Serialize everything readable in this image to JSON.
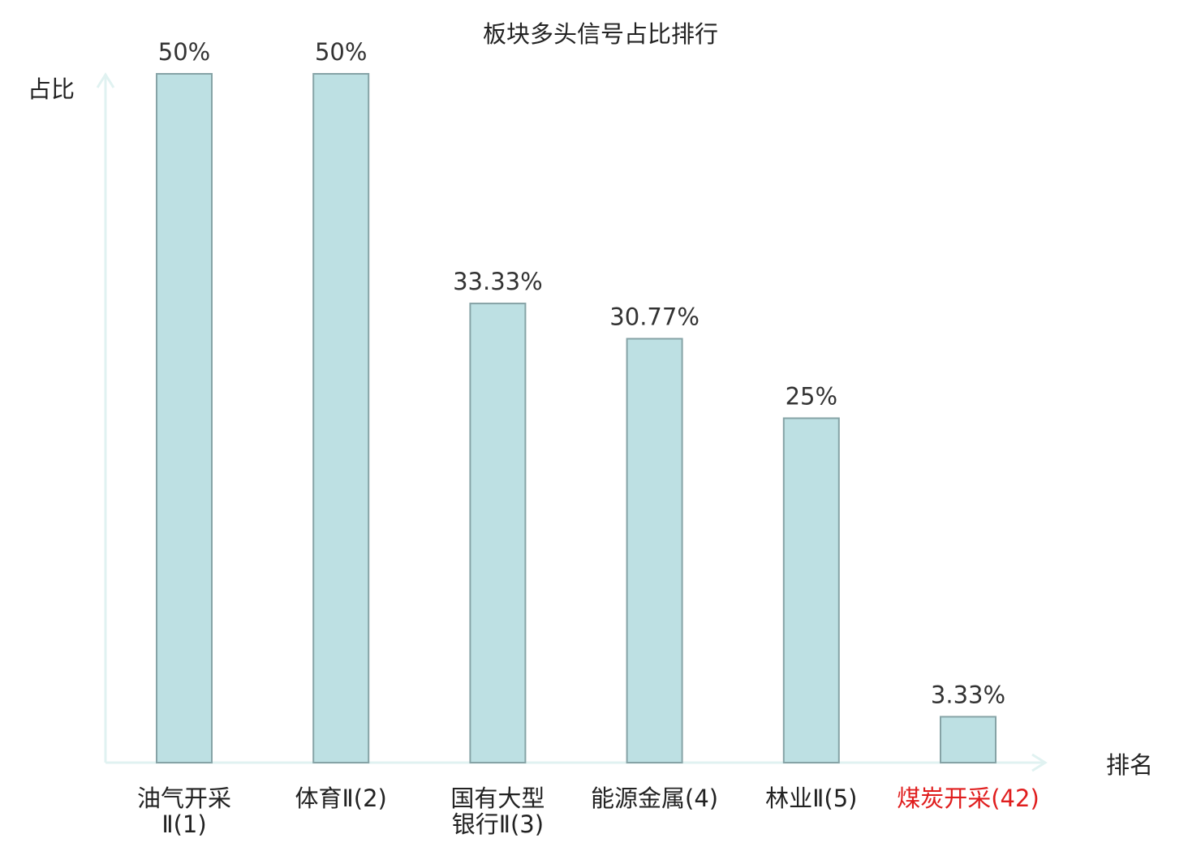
{
  "chart_data": {
    "type": "bar",
    "title": "板块多头信号占比排行",
    "ylabel": "占比",
    "xlabel": "排名",
    "categories": [
      [
        "油气开采",
        "Ⅱ(1)"
      ],
      [
        "体育Ⅱ(2)"
      ],
      [
        "国有大型",
        "银行Ⅱ(3)"
      ],
      [
        "能源金属(4)"
      ],
      [
        "林业Ⅱ(5)"
      ],
      [
        "煤炭开采(42)"
      ]
    ],
    "values": [
      50,
      50,
      33.33,
      30.77,
      25,
      3.33
    ],
    "value_labels": [
      "50%",
      "50%",
      "33.33%",
      "30.77%",
      "25%",
      "3.33%"
    ],
    "highlight_index": 5,
    "ylim": [
      0,
      50
    ],
    "grid": false,
    "legend": "none",
    "colors": {
      "bar_fill": "#bde0e3",
      "bar_stroke": "#86a3a6",
      "axis": "#e0f2f1",
      "text": "#222222",
      "value_text": "#333333",
      "highlight_text": "#e01e1e"
    }
  }
}
